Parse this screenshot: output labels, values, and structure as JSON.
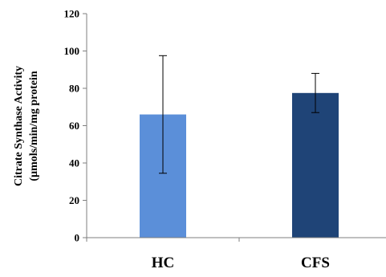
{
  "chart_data": {
    "type": "bar",
    "title": "",
    "xlabel": "",
    "ylabel_lines": [
      "Citrate Synthase Activity",
      "(µmols/min/mg protein"
    ],
    "categories": [
      "HC",
      "CFS"
    ],
    "values": [
      66,
      77.5
    ],
    "error_upper": [
      97.5,
      88
    ],
    "error_lower": [
      34.5,
      67
    ],
    "colors": [
      "#5b8fd9",
      "#1f4477"
    ],
    "ylim": [
      0,
      120
    ],
    "yticks": [
      0,
      20,
      40,
      60,
      80,
      100,
      120
    ],
    "grid": false,
    "legend": "none"
  }
}
